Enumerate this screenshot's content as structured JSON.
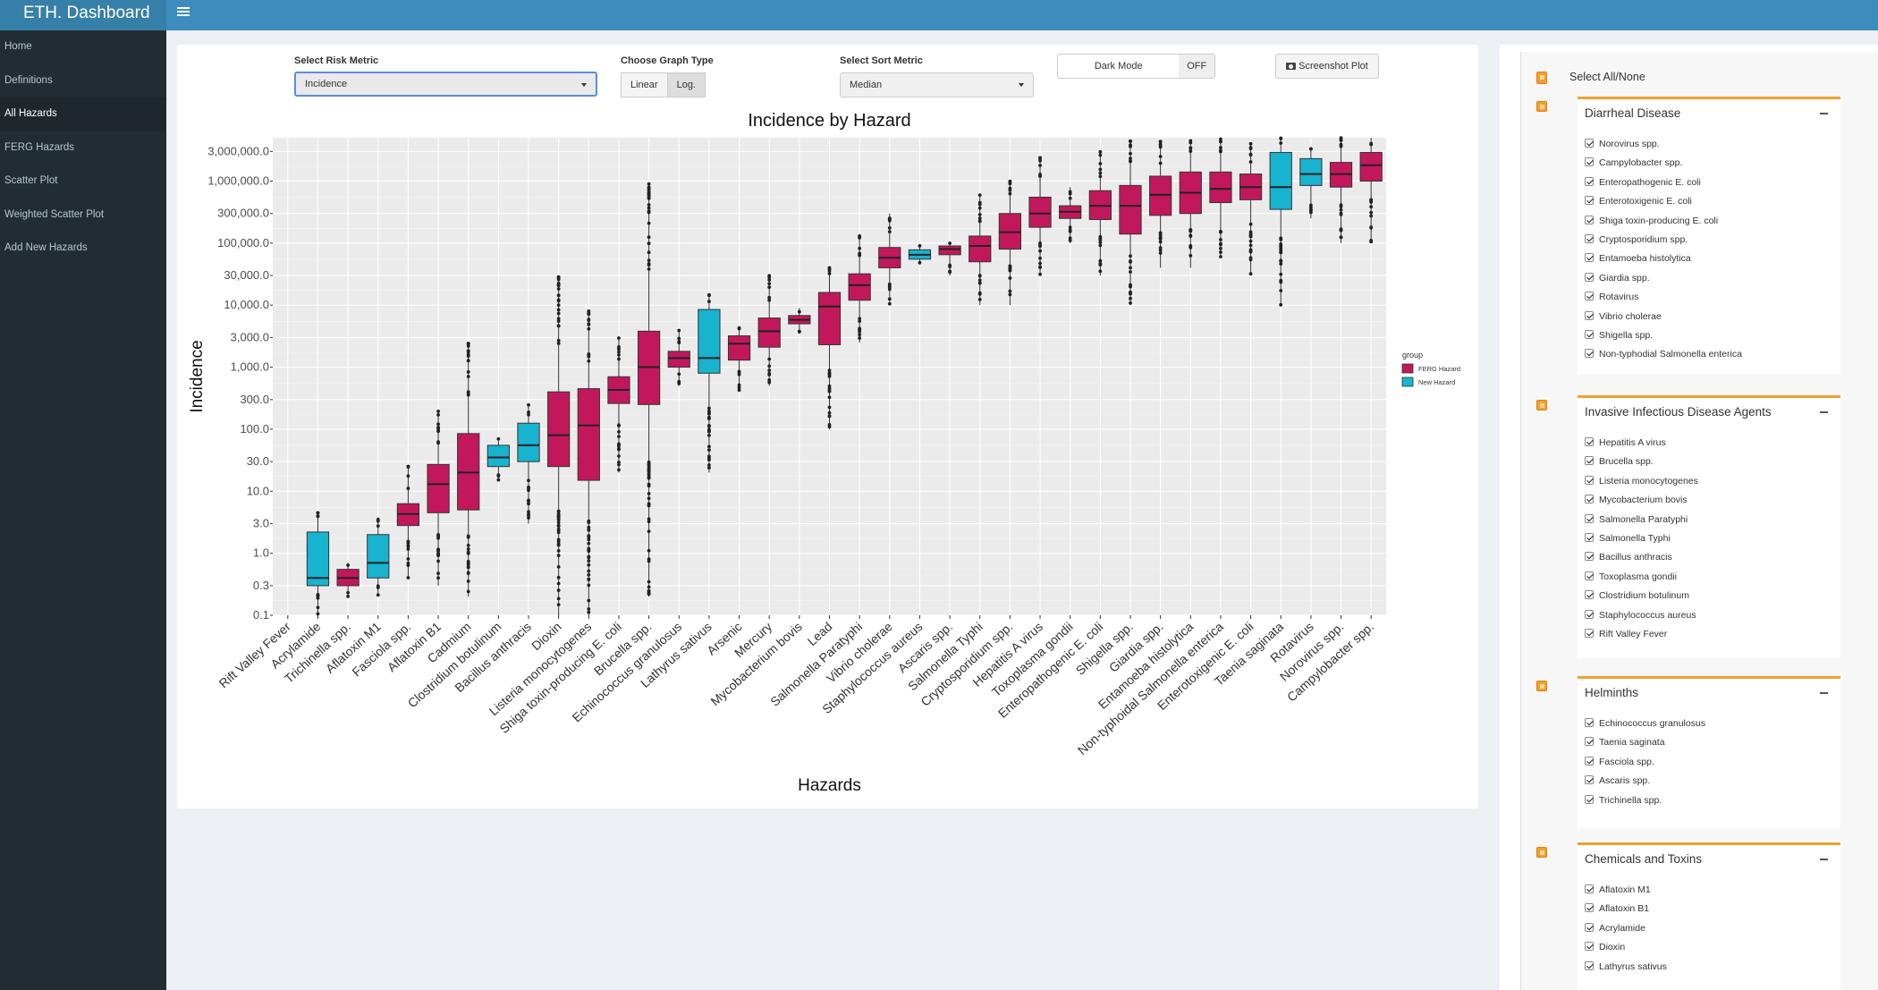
{
  "app": {
    "brand": "ETH. Dashboard",
    "menu_icon": "hamburger-icon"
  },
  "sidebar": {
    "items": [
      {
        "label": "Home"
      },
      {
        "label": "Definitions"
      },
      {
        "label": "All Hazards",
        "active": true
      },
      {
        "label": "FERG Hazards"
      },
      {
        "label": "Scatter Plot"
      },
      {
        "label": "Weighted Scatter Plot"
      },
      {
        "label": "Add New Hazards"
      }
    ]
  },
  "controls": {
    "risk_metric_label": "Select Risk Metric",
    "risk_metric_value": "Incidence",
    "graph_type_label": "Choose Graph Type",
    "graph_type_options": [
      "Linear",
      "Log."
    ],
    "graph_type_selected": "Log.",
    "sort_metric_label": "Select Sort Metric",
    "sort_metric_value": "Median",
    "dark_mode_label": "Dark Mode",
    "dark_mode_state": "OFF",
    "screenshot_label": "Screenshot Plot",
    "screenshot_icon": "camera-icon"
  },
  "chart_data": {
    "type": "box",
    "title": "Incidence by Hazard",
    "xlabel": "Hazards",
    "ylabel": "Incidence",
    "y_scale": "log",
    "ylim": [
      0.1,
      5000000
    ],
    "y_ticks": [
      {
        "v": 0.1,
        "label": "0.1"
      },
      {
        "v": 0.3,
        "label": "0.3"
      },
      {
        "v": 1,
        "label": "1.0"
      },
      {
        "v": 3,
        "label": "3.0"
      },
      {
        "v": 10,
        "label": "10.0"
      },
      {
        "v": 30,
        "label": "30.0"
      },
      {
        "v": 100,
        "label": "100.0"
      },
      {
        "v": 300,
        "label": "300.0"
      },
      {
        "v": 1000,
        "label": "1,000.0"
      },
      {
        "v": 3000,
        "label": "3,000.0"
      },
      {
        "v": 10000,
        "label": "10,000.0"
      },
      {
        "v": 30000,
        "label": "30,000.0"
      },
      {
        "v": 100000,
        "label": "100,000.0"
      },
      {
        "v": 300000,
        "label": "300,000.0"
      },
      {
        "v": 1000000,
        "label": "1,000,000.0"
      },
      {
        "v": 3000000,
        "label": "3,000,000.0"
      }
    ],
    "grid": true,
    "background": "#ebebeb",
    "legend": {
      "title": "group",
      "placement": "right",
      "items": [
        {
          "label": "FERG Hazard",
          "color": "#c2185b"
        },
        {
          "label": "New Hazard",
          "color": "#17b3cf"
        }
      ]
    },
    "boxes": [
      {
        "name": "Rift Valley Fever",
        "group": "New Hazard",
        "q1": null,
        "median": null,
        "q3": null,
        "lo": null,
        "hi": null
      },
      {
        "name": "Acrylamide",
        "group": "New Hazard",
        "q1": 0.3,
        "median": 0.4,
        "q3": 2.2,
        "lo": 0.1,
        "hi": 4.5
      },
      {
        "name": "Trichinella spp.",
        "group": "FERG Hazard",
        "q1": 0.3,
        "median": 0.4,
        "q3": 0.55,
        "lo": 0.2,
        "hi": 0.7
      },
      {
        "name": "Aflatoxin M1",
        "group": "New Hazard",
        "q1": 0.4,
        "median": 0.7,
        "q3": 2.0,
        "lo": 0.2,
        "hi": 3.8
      },
      {
        "name": "Fasciola spp.",
        "group": "FERG Hazard",
        "q1": 2.8,
        "median": 4.3,
        "q3": 6.3,
        "lo": 0.4,
        "hi": 25
      },
      {
        "name": "Aflatoxin B1",
        "group": "FERG Hazard",
        "q1": 4.5,
        "median": 13,
        "q3": 27,
        "lo": 0.3,
        "hi": 200
      },
      {
        "name": "Cadmium",
        "group": "FERG Hazard",
        "q1": 5,
        "median": 20,
        "q3": 85,
        "lo": 0.2,
        "hi": 2500
      },
      {
        "name": "Clostridium botulinum",
        "group": "New Hazard",
        "q1": 25,
        "median": 35,
        "q3": 55,
        "lo": 15,
        "hi": 70
      },
      {
        "name": "Bacillus anthracis",
        "group": "New Hazard",
        "q1": 30,
        "median": 55,
        "q3": 125,
        "lo": 3,
        "hi": 250
      },
      {
        "name": "Dioxin",
        "group": "FERG Hazard",
        "q1": 25,
        "median": 80,
        "q3": 400,
        "lo": 0.1,
        "hi": 30000
      },
      {
        "name": "Listeria monocytogenes",
        "group": "FERG Hazard",
        "q1": 15,
        "median": 115,
        "q3": 450,
        "lo": 0.1,
        "hi": 8000
      },
      {
        "name": "Shiga toxin-producing E. coli",
        "group": "FERG Hazard",
        "q1": 260,
        "median": 430,
        "q3": 700,
        "lo": 20,
        "hi": 3000
      },
      {
        "name": "Brucella spp.",
        "group": "FERG Hazard",
        "q1": 250,
        "median": 1000,
        "q3": 3800,
        "lo": 0.2,
        "hi": 900000
      },
      {
        "name": "Echinococcus granulosus",
        "group": "FERG Hazard",
        "q1": 1000,
        "median": 1400,
        "q3": 1800,
        "lo": 500,
        "hi": 4000
      },
      {
        "name": "Lathyrus sativus",
        "group": "New Hazard",
        "q1": 800,
        "median": 1400,
        "q3": 8500,
        "lo": 20,
        "hi": 15000
      },
      {
        "name": "Arsenic",
        "group": "FERG Hazard",
        "q1": 1300,
        "median": 2400,
        "q3": 3200,
        "lo": 400,
        "hi": 4500
      },
      {
        "name": "Mercury",
        "group": "FERG Hazard",
        "q1": 2100,
        "median": 3800,
        "q3": 6200,
        "lo": 500,
        "hi": 30000
      },
      {
        "name": "Mycobacterium bovis",
        "group": "FERG Hazard",
        "q1": 5000,
        "median": 5800,
        "q3": 6800,
        "lo": 3500,
        "hi": 9000
      },
      {
        "name": "Lead",
        "group": "FERG Hazard",
        "q1": 2300,
        "median": 9500,
        "q3": 16000,
        "lo": 100,
        "hi": 40000
      },
      {
        "name": "Salmonella Paratyphi",
        "group": "FERG Hazard",
        "q1": 12000,
        "median": 21000,
        "q3": 32000,
        "lo": 2500,
        "hi": 140000
      },
      {
        "name": "Vibrio cholerae",
        "group": "FERG Hazard",
        "q1": 40000,
        "median": 58000,
        "q3": 85000,
        "lo": 10000,
        "hi": 300000
      },
      {
        "name": "Staphylococcus aureus",
        "group": "New Hazard",
        "q1": 55000,
        "median": 65000,
        "q3": 78000,
        "lo": 45000,
        "hi": 95000
      },
      {
        "name": "Ascaris spp.",
        "group": "FERG Hazard",
        "q1": 65000,
        "median": 80000,
        "q3": 90000,
        "lo": 30000,
        "hi": 100000
      },
      {
        "name": "Salmonella Typhi",
        "group": "FERG Hazard",
        "q1": 50000,
        "median": 90000,
        "q3": 130000,
        "lo": 10000,
        "hi": 600000
      },
      {
        "name": "Cryptosporidium spp.",
        "group": "FERG Hazard",
        "q1": 80000,
        "median": 150000,
        "q3": 300000,
        "lo": 10000,
        "hi": 1000000
      },
      {
        "name": "Hepatitis A virus",
        "group": "FERG Hazard",
        "q1": 180000,
        "median": 300000,
        "q3": 550000,
        "lo": 30000,
        "hi": 2400000
      },
      {
        "name": "Toxoplasma gondii",
        "group": "FERG Hazard",
        "q1": 250000,
        "median": 320000,
        "q3": 400000,
        "lo": 100000,
        "hi": 800000
      },
      {
        "name": "Enteropathogenic E. coli",
        "group": "FERG Hazard",
        "q1": 240000,
        "median": 400000,
        "q3": 700000,
        "lo": 30000,
        "hi": 3000000
      },
      {
        "name": "Shigella spp.",
        "group": "FERG Hazard",
        "q1": 140000,
        "median": 400000,
        "q3": 850000,
        "lo": 10000,
        "hi": 4500000
      },
      {
        "name": "Giardia spp.",
        "group": "FERG Hazard",
        "q1": 280000,
        "median": 600000,
        "q3": 1200000,
        "lo": 40000,
        "hi": 4500000
      },
      {
        "name": "Entamoeba histolytica",
        "group": "FERG Hazard",
        "q1": 300000,
        "median": 650000,
        "q3": 1400000,
        "lo": 40000,
        "hi": 4500000
      },
      {
        "name": "Non-typhoidal Salmonella enterica",
        "group": "FERG Hazard",
        "q1": 450000,
        "median": 750000,
        "q3": 1400000,
        "lo": 60000,
        "hi": 5000000
      },
      {
        "name": "Enterotoxigenic E. coli",
        "group": "FERG Hazard",
        "q1": 500000,
        "median": 800000,
        "q3": 1300000,
        "lo": 30000,
        "hi": 4000000
      },
      {
        "name": "Taenia saginata",
        "group": "New Hazard",
        "q1": 350000,
        "median": 800000,
        "q3": 2900000,
        "lo": 10000,
        "hi": 5000000
      },
      {
        "name": "Rotavirus",
        "group": "New Hazard",
        "q1": 850000,
        "median": 1300000,
        "q3": 2300000,
        "lo": 250000,
        "hi": 3500000
      },
      {
        "name": "Norovirus spp.",
        "group": "FERG Hazard",
        "q1": 800000,
        "median": 1300000,
        "q3": 2000000,
        "lo": 100000,
        "hi": 5000000
      },
      {
        "name": "Campylobacter spp.",
        "group": "FERG Hazard",
        "q1": 1000000,
        "median": 1800000,
        "q3": 2900000,
        "lo": 100000,
        "hi": 5000000
      }
    ]
  },
  "filters": {
    "select_all_label": "Select All/None",
    "groups": [
      {
        "title": "Diarrheal Disease",
        "items": [
          "Norovirus spp.",
          "Campylobacter spp.",
          "Enteropathogenic E. coli",
          "Enterotoxigenic E. coli",
          "Shiga toxin-producing E. coli",
          "Cryptosporidium spp.",
          "Entamoeba histolytica",
          "Giardia spp.",
          "Rotavirus",
          "Vibrio cholerae",
          "Shigella spp.",
          "Non-typhodial Salmonella enterica"
        ]
      },
      {
        "title": "Invasive Infectious Disease Agents",
        "items": [
          "Hepatitis A virus",
          "Brucella spp.",
          "Listeria monocytogenes",
          "Mycobacterium bovis",
          "Salmonella Paratyphi",
          "Salmonella Typhi",
          "Bacillus anthracis",
          "Toxoplasma gondii",
          "Clostridium botulinum",
          "Staphylococcus aureus",
          "Rift Valley Fever"
        ]
      },
      {
        "title": "Helminths",
        "items": [
          "Echinococcus granulosus",
          "Taenia saginata",
          "Fasciola spp.",
          "Ascaris spp.",
          "Trichinella spp."
        ]
      },
      {
        "title": "Chemicals and Toxins",
        "items": [
          "Aflatoxin M1",
          "Aflatoxin B1",
          "Acrylamide",
          "Dioxin",
          "Lathyrus sativus"
        ]
      }
    ]
  }
}
